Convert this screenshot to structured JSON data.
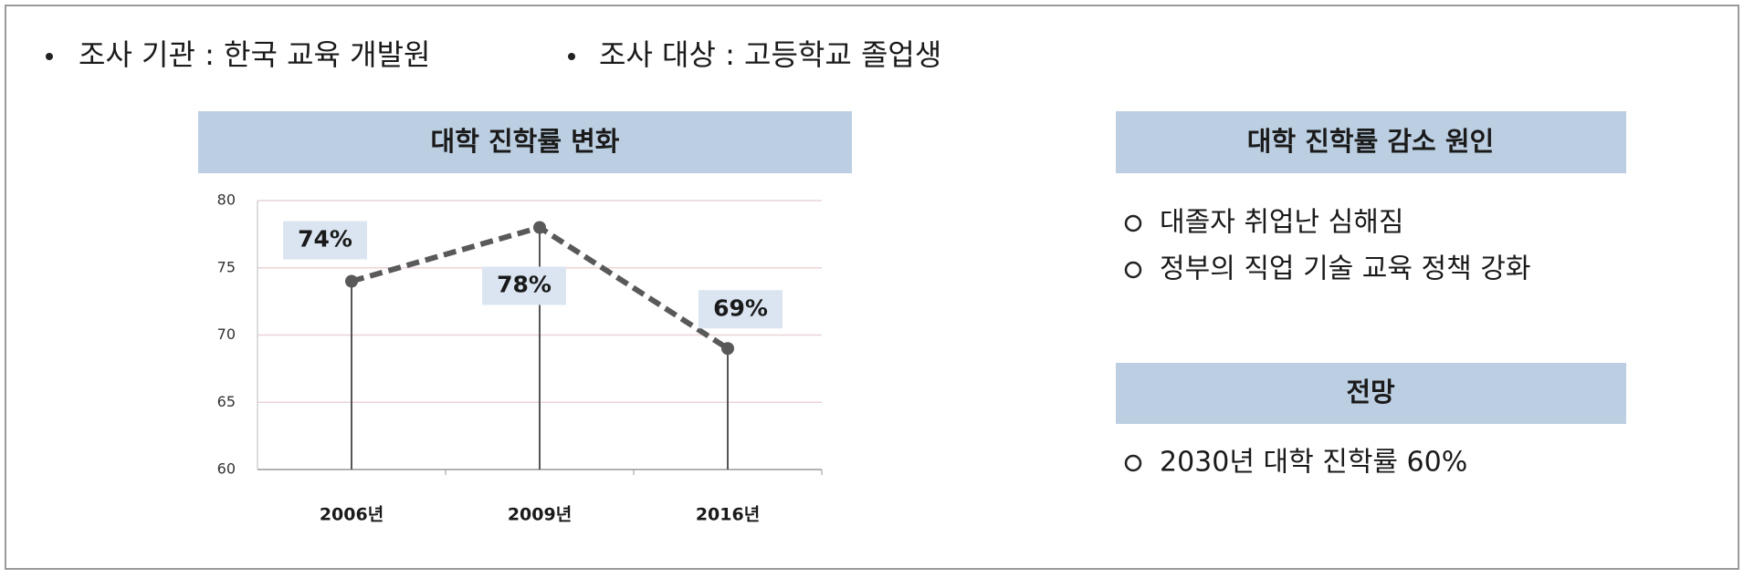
{
  "header": {
    "items": [
      "조사 기관 : 한국 교육 개발원",
      "조사 대상 : 고등학교 졸업생"
    ]
  },
  "chart_data": {
    "type": "line",
    "title": "대학 진학률 변화",
    "categories": [
      "2006년",
      "2009년",
      "2016년"
    ],
    "values": [
      74,
      78,
      69
    ],
    "value_labels": [
      "74%",
      "78%",
      "69%"
    ],
    "color": "#595959",
    "ylim": [
      60,
      80
    ],
    "yticks": [
      60,
      65,
      70,
      75,
      80
    ],
    "grid": true
  },
  "panels": [
    {
      "title": "대학 진학률 감소 원인",
      "items": [
        "대졸자 취업난 심해짐",
        "정부의 직업 기술 교육 정책 강화"
      ]
    },
    {
      "title": "전망",
      "items": [
        "2030년 대학 진학률 60%"
      ]
    }
  ]
}
